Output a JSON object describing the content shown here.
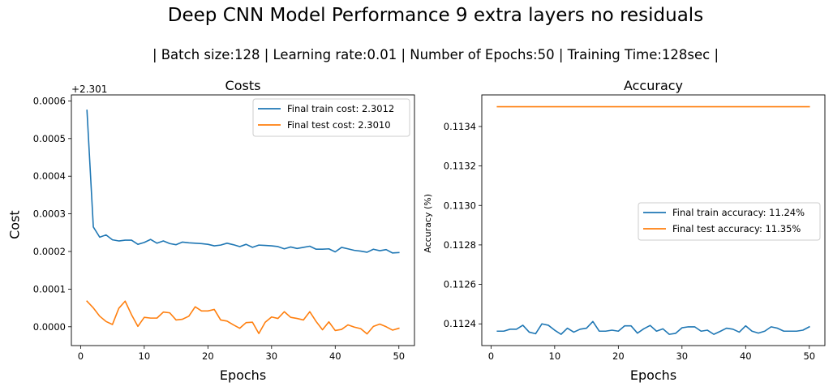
{
  "figure": {
    "title": "Deep CNN Model Performance 9 extra layers no residuals",
    "subtitle": "| Batch size:128 | Learning rate:0.01 | Number of Epochs:50 | Training Time:128sec |"
  },
  "colors": {
    "train": "#1f77b4",
    "test": "#ff7f0e"
  },
  "chart_data": [
    {
      "type": "line",
      "title": "Costs",
      "xlabel": "Epochs",
      "ylabel": "Cost",
      "offset_text": "+2.301",
      "xlim": [
        -1.45,
        52.45
      ],
      "ylim": [
        -5e-05,
        0.000616
      ],
      "xticks": [
        0,
        10,
        20,
        30,
        40,
        50
      ],
      "yticks": [
        0.0,
        0.0001,
        0.0002,
        0.0003,
        0.0004,
        0.0005,
        0.0006
      ],
      "ytick_labels": [
        "0.0000",
        "0.0001",
        "0.0002",
        "0.0003",
        "0.0004",
        "0.0005",
        "0.0006"
      ],
      "legend_position": "top-right",
      "x": [
        1,
        2,
        3,
        4,
        5,
        6,
        7,
        8,
        9,
        10,
        11,
        12,
        13,
        14,
        15,
        16,
        17,
        18,
        19,
        20,
        21,
        22,
        23,
        24,
        25,
        26,
        27,
        28,
        29,
        30,
        31,
        32,
        33,
        34,
        35,
        36,
        37,
        38,
        39,
        40,
        41,
        42,
        43,
        44,
        45,
        46,
        47,
        48,
        49,
        50
      ],
      "series": [
        {
          "name": "Final train cost: 2.3012",
          "color_key": "train",
          "values": [
            0.000575,
            0.000265,
            0.000238,
            0.000244,
            0.000231,
            0.000228,
            0.00023,
            0.00023,
            0.000219,
            0.000224,
            0.000232,
            0.000222,
            0.000228,
            0.000221,
            0.000218,
            0.000225,
            0.000223,
            0.000222,
            0.000221,
            0.000219,
            0.000215,
            0.000217,
            0.000222,
            0.000218,
            0.000213,
            0.000219,
            0.000211,
            0.000217,
            0.000216,
            0.000215,
            0.000213,
            0.000207,
            0.000212,
            0.000208,
            0.000211,
            0.000214,
            0.000206,
            0.000206,
            0.000207,
            0.000199,
            0.000211,
            0.000207,
            0.000203,
            0.000201,
            0.000198,
            0.000206,
            0.000202,
            0.000205,
            0.000196,
            0.000197
          ]
        },
        {
          "name": "Final test cost: 2.3010",
          "color_key": "test",
          "values": [
            6.8e-05,
            5e-05,
            2.8e-05,
            1.4e-05,
            6e-06,
            4.9e-05,
            6.8e-05,
            3.2e-05,
            1e-06,
            2.5e-05,
            2.3e-05,
            2.3e-05,
            3.9e-05,
            3.7e-05,
            1.8e-05,
            2e-05,
            2.8e-05,
            5.3e-05,
            4.2e-05,
            4.2e-05,
            4.6e-05,
            1.8e-05,
            1.5e-05,
            5e-06,
            -4e-06,
            1.1e-05,
            1.2e-05,
            -1.8e-05,
            1.2e-05,
            2.6e-05,
            2.2e-05,
            4e-05,
            2.5e-05,
            2.2e-05,
            1.8e-05,
            4e-05,
            1.4e-05,
            -8e-06,
            1.3e-05,
            -1e-05,
            -7e-06,
            5e-06,
            -1e-06,
            -5e-06,
            -1.9e-05,
            1e-06,
            7e-06,
            0.0,
            -9e-06,
            -4e-06
          ]
        }
      ]
    },
    {
      "type": "line",
      "title": "Accuracy",
      "xlabel": "Epochs",
      "ylabel": "Accuracy (%)",
      "xlim": [
        -1.45,
        52.45
      ],
      "ylim": [
        0.11229,
        0.11356
      ],
      "xticks": [
        0,
        10,
        20,
        30,
        40,
        50
      ],
      "yticks": [
        0.1124,
        0.1126,
        0.1128,
        0.113,
        0.1132,
        0.1134
      ],
      "ytick_labels": [
        "0.1124",
        "0.1126",
        "0.1128",
        "0.1130",
        "0.1132",
        "0.1134"
      ],
      "legend_position": "center-right",
      "x": [
        1,
        2,
        3,
        4,
        5,
        6,
        7,
        8,
        9,
        10,
        11,
        12,
        13,
        14,
        15,
        16,
        17,
        18,
        19,
        20,
        21,
        22,
        23,
        24,
        25,
        26,
        27,
        28,
        29,
        30,
        31,
        32,
        33,
        34,
        35,
        36,
        37,
        38,
        39,
        40,
        41,
        42,
        43,
        44,
        45,
        46,
        47,
        48,
        49,
        50
      ],
      "series": [
        {
          "name": "Final train accuracy: 11.24%",
          "color_key": "train",
          "values": [
            0.112363,
            0.112363,
            0.112373,
            0.112373,
            0.112393,
            0.112358,
            0.11235,
            0.1124,
            0.112393,
            0.112368,
            0.112347,
            0.112378,
            0.112358,
            0.112373,
            0.112378,
            0.112412,
            0.112363,
            0.112363,
            0.112368,
            0.112363,
            0.11239,
            0.11239,
            0.112353,
            0.112375,
            0.112392,
            0.112363,
            0.112375,
            0.112347,
            0.112352,
            0.11238,
            0.112385,
            0.112385,
            0.112363,
            0.112368,
            0.112347,
            0.112362,
            0.112378,
            0.112373,
            0.112358,
            0.11239,
            0.112363,
            0.112353,
            0.112363,
            0.112385,
            0.112378,
            0.112363,
            0.112363,
            0.112363,
            0.112368,
            0.112385
          ]
        },
        {
          "name": "Final test accuracy: 11.35%",
          "color_key": "test",
          "values": [
            0.1135,
            0.1135,
            0.1135,
            0.1135,
            0.1135,
            0.1135,
            0.1135,
            0.1135,
            0.1135,
            0.1135,
            0.1135,
            0.1135,
            0.1135,
            0.1135,
            0.1135,
            0.1135,
            0.1135,
            0.1135,
            0.1135,
            0.1135,
            0.1135,
            0.1135,
            0.1135,
            0.1135,
            0.1135,
            0.1135,
            0.1135,
            0.1135,
            0.1135,
            0.1135,
            0.1135,
            0.1135,
            0.1135,
            0.1135,
            0.1135,
            0.1135,
            0.1135,
            0.1135,
            0.1135,
            0.1135,
            0.1135,
            0.1135,
            0.1135,
            0.1135,
            0.1135,
            0.1135,
            0.1135,
            0.1135,
            0.1135,
            0.1135
          ]
        }
      ]
    }
  ]
}
